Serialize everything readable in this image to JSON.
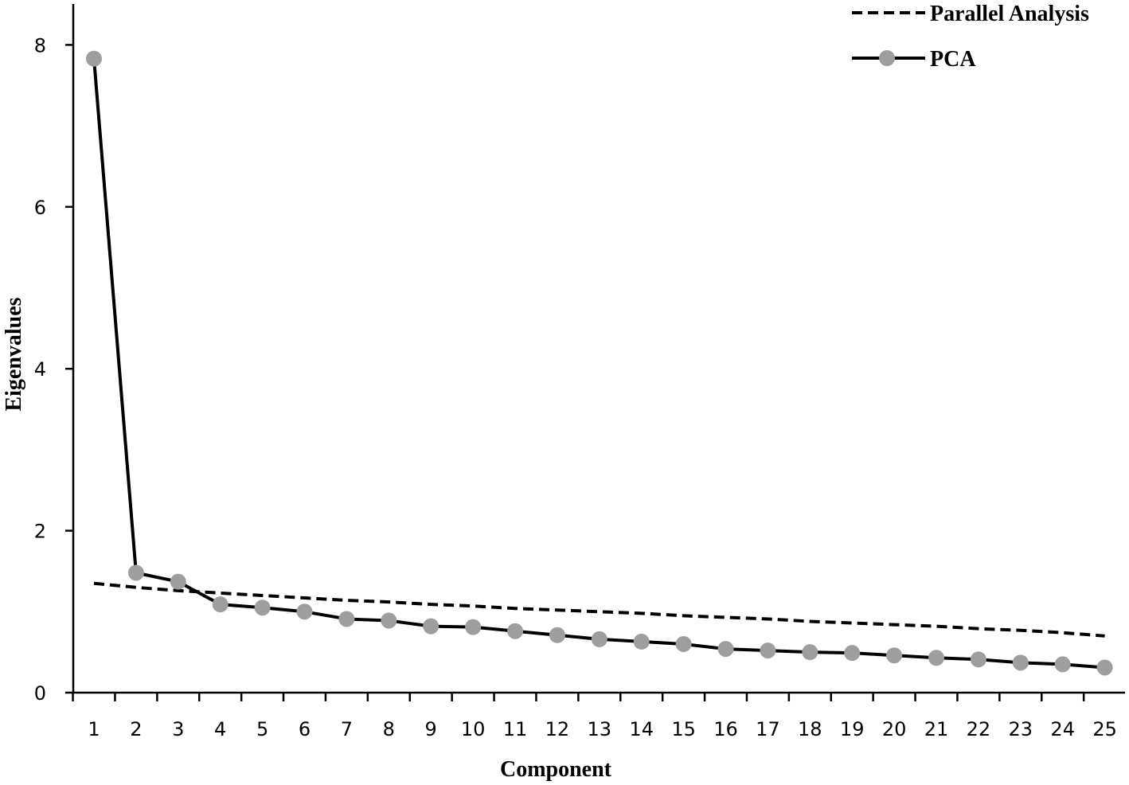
{
  "chart_data": {
    "type": "line",
    "xlabel": "Component",
    "ylabel": "Eigenvalues",
    "x": [
      1,
      2,
      3,
      4,
      5,
      6,
      7,
      8,
      9,
      10,
      11,
      12,
      13,
      14,
      15,
      16,
      17,
      18,
      19,
      20,
      21,
      22,
      23,
      24,
      25
    ],
    "ylim": [
      0,
      8.5
    ],
    "yticks": [
      0,
      2,
      4,
      6,
      8
    ],
    "grid": false,
    "legend_position": "top-right",
    "series": [
      {
        "name": "Parallel Analysis",
        "style": "dashed",
        "color": "#000000",
        "values": [
          1.35,
          1.3,
          1.26,
          1.23,
          1.2,
          1.17,
          1.14,
          1.12,
          1.09,
          1.07,
          1.04,
          1.02,
          1.0,
          0.98,
          0.95,
          0.93,
          0.91,
          0.88,
          0.86,
          0.84,
          0.82,
          0.79,
          0.77,
          0.74,
          0.7
        ]
      },
      {
        "name": "PCA",
        "style": "solid",
        "color": "#000000",
        "marker_color": "#9e9e9e",
        "values": [
          7.83,
          1.48,
          1.37,
          1.09,
          1.05,
          1.0,
          0.91,
          0.89,
          0.82,
          0.81,
          0.76,
          0.71,
          0.66,
          0.63,
          0.6,
          0.54,
          0.52,
          0.5,
          0.49,
          0.46,
          0.43,
          0.41,
          0.37,
          0.35,
          0.31
        ]
      }
    ]
  }
}
